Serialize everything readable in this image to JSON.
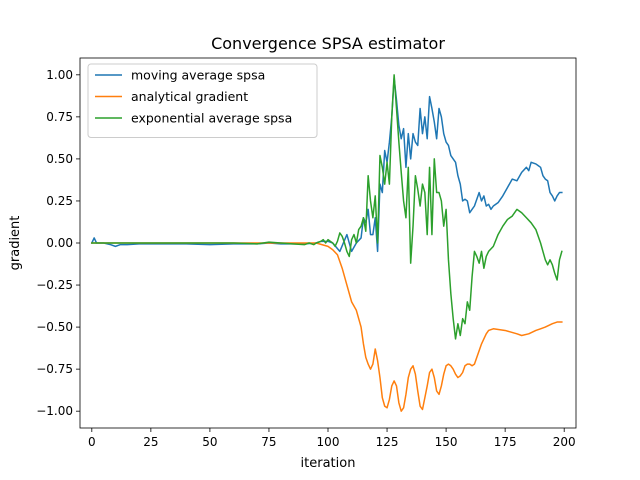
{
  "chart_data": {
    "type": "line",
    "title": "Convergence SPSA estimator",
    "xlabel": "iteration",
    "ylabel": "gradient",
    "xlim": [
      -5,
      205
    ],
    "ylim": [
      -1.1,
      1.1
    ],
    "xticks": [
      0,
      25,
      50,
      75,
      100,
      125,
      150,
      175,
      200
    ],
    "xtick_labels": [
      "0",
      "25",
      "50",
      "75",
      "100",
      "125",
      "150",
      "175",
      "200"
    ],
    "yticks": [
      1.0,
      0.75,
      0.5,
      0.25,
      0.0,
      -0.25,
      -0.5,
      -0.75,
      -1.0
    ],
    "ytick_labels": [
      "1.00",
      "0.75",
      "0.50",
      "0.25",
      "0.00",
      "−0.25",
      "−0.50",
      "−0.75",
      "−1.00"
    ],
    "grid": false,
    "legend_position": "top-left",
    "series": [
      {
        "name": "moving average spsa",
        "color": "#1f77b4",
        "points": [
          [
            0,
            0.0
          ],
          [
            1,
            0.03
          ],
          [
            2,
            0.0
          ],
          [
            5,
            0.0
          ],
          [
            8,
            -0.01
          ],
          [
            10,
            -0.02
          ],
          [
            12,
            -0.01
          ],
          [
            15,
            -0.01
          ],
          [
            20,
            -0.005
          ],
          [
            25,
            -0.005
          ],
          [
            30,
            -0.005
          ],
          [
            40,
            -0.005
          ],
          [
            50,
            -0.01
          ],
          [
            60,
            -0.005
          ],
          [
            70,
            -0.005
          ],
          [
            75,
            0.0
          ],
          [
            80,
            -0.005
          ],
          [
            90,
            -0.005
          ],
          [
            95,
            0.0
          ],
          [
            97,
            0.01
          ],
          [
            100,
            0.01
          ],
          [
            102,
            0.0
          ],
          [
            105,
            -0.05
          ],
          [
            108,
            0.05
          ],
          [
            110,
            -0.05
          ],
          [
            112,
            0.0
          ],
          [
            114,
            0.03
          ],
          [
            115,
            0.15
          ],
          [
            116,
            0.12
          ],
          [
            117,
            0.2
          ],
          [
            118,
            0.05
          ],
          [
            119,
            0.05
          ],
          [
            120,
            0.15
          ],
          [
            121,
            -0.05
          ],
          [
            122,
            0.35
          ],
          [
            123,
            0.3
          ],
          [
            124,
            0.55
          ],
          [
            125,
            0.48
          ],
          [
            126,
            0.6
          ],
          [
            127,
            0.75
          ],
          [
            128,
            0.98
          ],
          [
            129,
            0.85
          ],
          [
            130,
            0.7
          ],
          [
            131,
            0.62
          ],
          [
            132,
            0.68
          ],
          [
            133,
            0.45
          ],
          [
            134,
            0.65
          ],
          [
            135,
            0.5
          ],
          [
            136,
            0.65
          ],
          [
            137,
            0.6
          ],
          [
            138,
            0.58
          ],
          [
            139,
            0.8
          ],
          [
            140,
            0.65
          ],
          [
            141,
            0.75
          ],
          [
            142,
            0.62
          ],
          [
            143,
            0.87
          ],
          [
            144,
            0.8
          ],
          [
            145,
            0.72
          ],
          [
            146,
            0.62
          ],
          [
            147,
            0.8
          ],
          [
            148,
            0.75
          ],
          [
            149,
            0.65
          ],
          [
            150,
            0.6
          ],
          [
            151,
            0.58
          ],
          [
            152,
            0.52
          ],
          [
            153,
            0.5
          ],
          [
            154,
            0.48
          ],
          [
            155,
            0.4
          ],
          [
            156,
            0.35
          ],
          [
            157,
            0.25
          ],
          [
            158,
            0.26
          ],
          [
            159,
            0.25
          ],
          [
            160,
            0.18
          ],
          [
            161,
            0.2
          ],
          [
            162,
            0.22
          ],
          [
            163,
            0.26
          ],
          [
            164,
            0.3
          ],
          [
            165,
            0.25
          ],
          [
            166,
            0.28
          ],
          [
            167,
            0.22
          ],
          [
            168,
            0.23
          ],
          [
            169,
            0.2
          ],
          [
            170,
            0.22
          ],
          [
            172,
            0.24
          ],
          [
            174,
            0.28
          ],
          [
            176,
            0.33
          ],
          [
            178,
            0.38
          ],
          [
            180,
            0.37
          ],
          [
            182,
            0.42
          ],
          [
            184,
            0.45
          ],
          [
            185,
            0.43
          ],
          [
            186,
            0.48
          ],
          [
            188,
            0.47
          ],
          [
            189,
            0.46
          ],
          [
            190,
            0.45
          ],
          [
            191,
            0.4
          ],
          [
            192,
            0.38
          ],
          [
            193,
            0.37
          ],
          [
            194,
            0.3
          ],
          [
            195,
            0.28
          ],
          [
            196,
            0.25
          ],
          [
            197,
            0.28
          ],
          [
            198,
            0.3
          ],
          [
            199,
            0.3
          ]
        ]
      },
      {
        "name": "analytical gradient",
        "color": "#ff7f0e",
        "points": [
          [
            0,
            0.0
          ],
          [
            10,
            0.0
          ],
          [
            25,
            0.0
          ],
          [
            50,
            0.0
          ],
          [
            75,
            0.0
          ],
          [
            90,
            0.0
          ],
          [
            95,
            0.0
          ],
          [
            100,
            -0.02
          ],
          [
            102,
            -0.04
          ],
          [
            104,
            -0.07
          ],
          [
            106,
            -0.15
          ],
          [
            108,
            -0.25
          ],
          [
            110,
            -0.35
          ],
          [
            112,
            -0.4
          ],
          [
            114,
            -0.5
          ],
          [
            115,
            -0.6
          ],
          [
            116,
            -0.68
          ],
          [
            117,
            -0.72
          ],
          [
            118,
            -0.75
          ],
          [
            119,
            -0.72
          ],
          [
            120,
            -0.63
          ],
          [
            121,
            -0.7
          ],
          [
            122,
            -0.8
          ],
          [
            123,
            -0.92
          ],
          [
            124,
            -0.97
          ],
          [
            125,
            -0.98
          ],
          [
            126,
            -0.93
          ],
          [
            127,
            -0.85
          ],
          [
            128,
            -0.82
          ],
          [
            129,
            -0.85
          ],
          [
            130,
            -0.95
          ],
          [
            131,
            -1.0
          ],
          [
            132,
            -0.98
          ],
          [
            133,
            -0.9
          ],
          [
            134,
            -0.8
          ],
          [
            135,
            -0.75
          ],
          [
            136,
            -0.73
          ],
          [
            137,
            -0.78
          ],
          [
            138,
            -0.88
          ],
          [
            139,
            -0.97
          ],
          [
            140,
            -0.99
          ],
          [
            141,
            -0.92
          ],
          [
            142,
            -0.85
          ],
          [
            143,
            -0.77
          ],
          [
            144,
            -0.75
          ],
          [
            145,
            -0.8
          ],
          [
            146,
            -0.88
          ],
          [
            147,
            -0.9
          ],
          [
            148,
            -0.85
          ],
          [
            149,
            -0.78
          ],
          [
            150,
            -0.73
          ],
          [
            151,
            -0.72
          ],
          [
            152,
            -0.73
          ],
          [
            153,
            -0.75
          ],
          [
            154,
            -0.78
          ],
          [
            155,
            -0.8
          ],
          [
            156,
            -0.79
          ],
          [
            157,
            -0.77
          ],
          [
            158,
            -0.73
          ],
          [
            159,
            -0.72
          ],
          [
            160,
            -0.72
          ],
          [
            161,
            -0.73
          ],
          [
            162,
            -0.72
          ],
          [
            163,
            -0.68
          ],
          [
            164,
            -0.64
          ],
          [
            165,
            -0.6
          ],
          [
            166,
            -0.57
          ],
          [
            167,
            -0.54
          ],
          [
            168,
            -0.52
          ],
          [
            170,
            -0.51
          ],
          [
            175,
            -0.52
          ],
          [
            180,
            -0.54
          ],
          [
            182,
            -0.55
          ],
          [
            185,
            -0.54
          ],
          [
            188,
            -0.52
          ],
          [
            190,
            -0.51
          ],
          [
            192,
            -0.5
          ],
          [
            195,
            -0.48
          ],
          [
            197,
            -0.47
          ],
          [
            199,
            -0.47
          ]
        ]
      },
      {
        "name": "exponential average spsa",
        "color": "#2ca02c",
        "points": [
          [
            0,
            0.0
          ],
          [
            10,
            0.0
          ],
          [
            20,
            0.0
          ],
          [
            30,
            0.0
          ],
          [
            40,
            0.0
          ],
          [
            50,
            0.0
          ],
          [
            60,
            0.0
          ],
          [
            70,
            -0.005
          ],
          [
            75,
            0.005
          ],
          [
            80,
            0.0
          ],
          [
            85,
            -0.005
          ],
          [
            90,
            -0.01
          ],
          [
            92,
            0.0
          ],
          [
            94,
            -0.01
          ],
          [
            95,
            0.0
          ],
          [
            97,
            0.01
          ],
          [
            98,
            0.02
          ],
          [
            99,
            0.0
          ],
          [
            100,
            0.02
          ],
          [
            101,
            0.01
          ],
          [
            102,
            0.0
          ],
          [
            103,
            -0.02
          ],
          [
            104,
            0.01
          ],
          [
            105,
            0.06
          ],
          [
            106,
            0.04
          ],
          [
            107,
            0.0
          ],
          [
            108,
            -0.05
          ],
          [
            109,
            -0.08
          ],
          [
            110,
            0.02
          ],
          [
            111,
            0.05
          ],
          [
            112,
            0.0
          ],
          [
            113,
            0.08
          ],
          [
            114,
            0.1
          ],
          [
            115,
            0.15
          ],
          [
            116,
            0.07
          ],
          [
            117,
            0.4
          ],
          [
            118,
            0.25
          ],
          [
            119,
            0.15
          ],
          [
            120,
            0.28
          ],
          [
            121,
            0.0
          ],
          [
            122,
            0.52
          ],
          [
            123,
            0.45
          ],
          [
            124,
            0.35
          ],
          [
            125,
            0.48
          ],
          [
            126,
            0.35
          ],
          [
            127,
            0.75
          ],
          [
            128,
            1.0
          ],
          [
            129,
            0.8
          ],
          [
            130,
            0.6
          ],
          [
            131,
            0.42
          ],
          [
            132,
            0.25
          ],
          [
            133,
            0.15
          ],
          [
            134,
            0.45
          ],
          [
            135,
            -0.12
          ],
          [
            136,
            0.1
          ],
          [
            137,
            0.4
          ],
          [
            138,
            0.32
          ],
          [
            139,
            0.22
          ],
          [
            140,
            0.35
          ],
          [
            141,
            0.3
          ],
          [
            142,
            0.05
          ],
          [
            143,
            0.45
          ],
          [
            144,
            0.05
          ],
          [
            145,
            0.5
          ],
          [
            146,
            0.3
          ],
          [
            147,
            0.3
          ],
          [
            148,
            0.25
          ],
          [
            149,
            0.1
          ],
          [
            150,
            0.2
          ],
          [
            151,
            -0.1
          ],
          [
            152,
            -0.3
          ],
          [
            153,
            -0.45
          ],
          [
            154,
            -0.57
          ],
          [
            155,
            -0.48
          ],
          [
            156,
            -0.55
          ],
          [
            157,
            -0.45
          ],
          [
            158,
            -0.48
          ],
          [
            159,
            -0.35
          ],
          [
            160,
            -0.4
          ],
          [
            161,
            -0.2
          ],
          [
            162,
            -0.05
          ],
          [
            163,
            -0.08
          ],
          [
            164,
            -0.12
          ],
          [
            165,
            -0.05
          ],
          [
            166,
            -0.15
          ],
          [
            167,
            -0.08
          ],
          [
            168,
            -0.05
          ],
          [
            170,
            -0.02
          ],
          [
            172,
            0.05
          ],
          [
            174,
            0.1
          ],
          [
            176,
            0.14
          ],
          [
            178,
            0.16
          ],
          [
            180,
            0.2
          ],
          [
            182,
            0.18
          ],
          [
            184,
            0.15
          ],
          [
            186,
            0.12
          ],
          [
            188,
            0.08
          ],
          [
            190,
            0.0
          ],
          [
            191,
            -0.05
          ],
          [
            192,
            -0.1
          ],
          [
            193,
            -0.13
          ],
          [
            194,
            -0.1
          ],
          [
            195,
            -0.13
          ],
          [
            196,
            -0.18
          ],
          [
            197,
            -0.22
          ],
          [
            198,
            -0.1
          ],
          [
            199,
            -0.05
          ]
        ]
      }
    ]
  }
}
